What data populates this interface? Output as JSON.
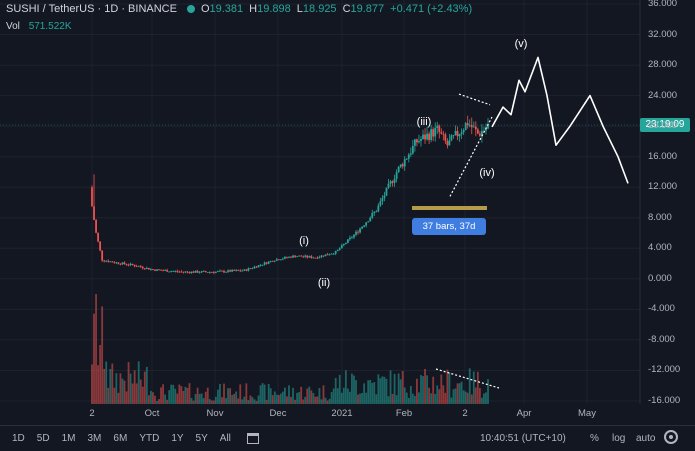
{
  "header": {
    "symbol": "SUSHI / TetherUS · 1D · BINANCE",
    "open_label": "O",
    "open": "19.381",
    "high_label": "H",
    "high": "19.898",
    "low_label": "L",
    "low": "18.925",
    "close_label": "C",
    "close": "19.877",
    "change": "+0.471 (+2.43%)"
  },
  "volume": {
    "label": "Vol",
    "value": "571.522K"
  },
  "price_badge": "23:19:09",
  "bars_tag": "37 bars, 37d",
  "bottom_bar": {
    "timeframes": [
      "1D",
      "5D",
      "1M",
      "3M",
      "6M",
      "YTD",
      "1Y",
      "5Y",
      "All"
    ],
    "clock": "10:40:51 (UTC+10)",
    "percent": "%",
    "log": "log",
    "auto": "auto"
  },
  "colors": {
    "up": "#26a69a",
    "down": "#ef5350",
    "bg": "#131722",
    "grid": "#1e222d",
    "accent": "#3f7ee0"
  },
  "chart_data": {
    "type": "candlestick",
    "symbol": "SUSHI / TetherUS",
    "interval": "1D",
    "exchange": "BINANCE",
    "y_ticks": [
      "36.000",
      "32.000",
      "28.000",
      "24.000",
      "20.000",
      "16.000",
      "12.000",
      "8.000",
      "4.000",
      "0.000",
      "-4.000",
      "-8.000",
      "-12.000",
      "-16.000"
    ],
    "ylim": [
      -16,
      36
    ],
    "x_ticks": [
      "2",
      "Oct",
      "Nov",
      "Dec",
      "2021",
      "Feb",
      "2",
      "Apr",
      "May"
    ],
    "price_path_days": [
      0,
      2,
      5,
      10,
      20,
      30,
      45,
      60,
      75,
      90,
      100,
      110,
      120,
      130,
      140,
      150,
      160,
      170,
      175,
      180,
      185,
      190,
      195
    ],
    "price_path_values": [
      9.5,
      6.0,
      2.5,
      2.2,
      1.8,
      1.2,
      0.9,
      0.9,
      1.1,
      2.5,
      3.0,
      2.8,
      3.5,
      6.0,
      9.0,
      14.0,
      18.0,
      19.5,
      17.5,
      19.0,
      20.5,
      19.0,
      19.9
    ],
    "projection_labels": [
      "(i)",
      "(ii)",
      "(iii)",
      "(iv)",
      "(v)"
    ],
    "projection_path_values": [
      19.9,
      22.5,
      21.5,
      26.0,
      24.5,
      29.0,
      24.0,
      17.5,
      20.0,
      24.0,
      20.0,
      16.0,
      12.5
    ],
    "annotations": [
      "37 bars, 37d"
    ]
  }
}
